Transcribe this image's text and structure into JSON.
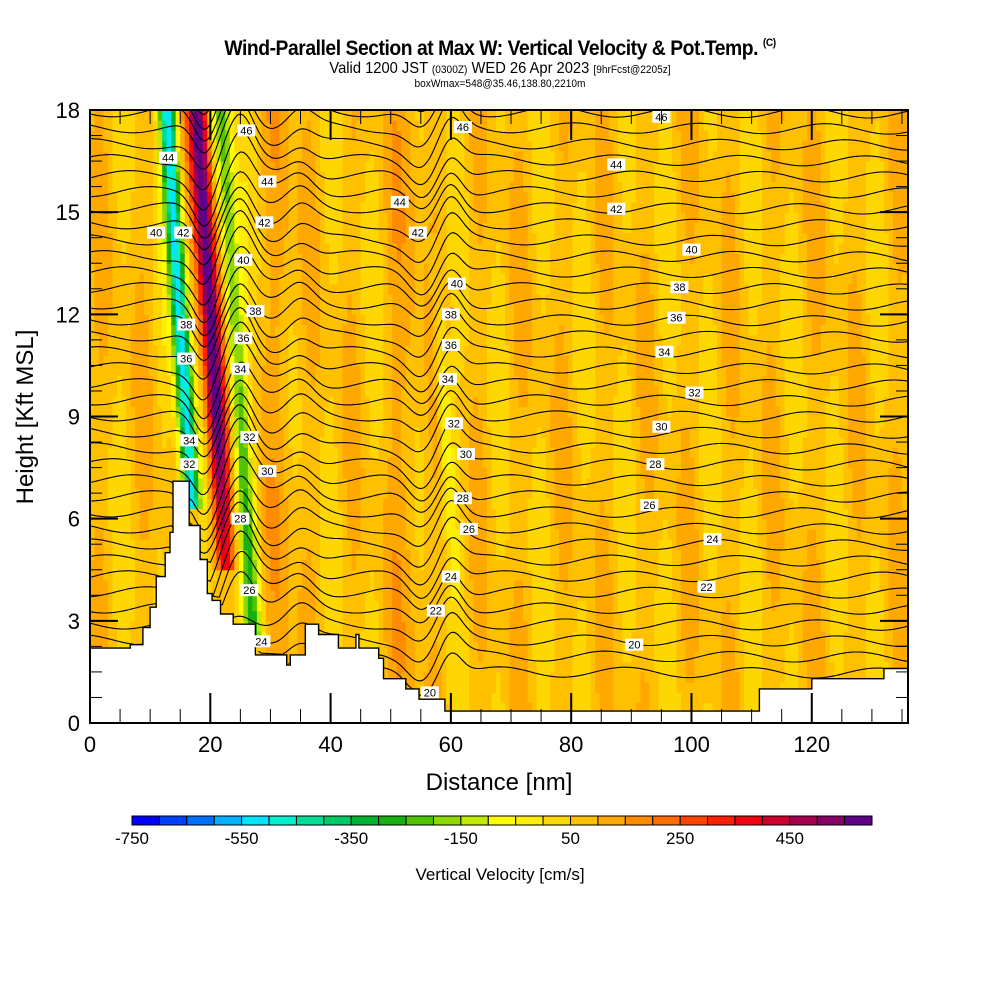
{
  "title": {
    "main": "Wind-Parallel Section at Max W: Vertical Velocity & Pot.Temp.",
    "copyright": "(C)",
    "valid_prefix": "Valid 1200 JST",
    "utc": "(0300Z)",
    "valid_date": "WED 26 Apr 2023",
    "forecast": "[9hrFcst@2205z]",
    "box_info": "boxWmax=548@35.46,138.80,2210m"
  },
  "chart_data": {
    "type": "heatmap",
    "title": "Wind-Parallel Section at Max W: Vertical Velocity & Pot.Temp.",
    "xlabel": "Distance [nm]",
    "ylabel": "Height [Kft MSL]",
    "xlim": [
      0,
      136
    ],
    "ylim": [
      0,
      18
    ],
    "xticks": [
      "0",
      "20",
      "40",
      "60",
      "80",
      "100",
      "120"
    ],
    "xtick_values": [
      0,
      20,
      40,
      60,
      80,
      100,
      120
    ],
    "yticks": [
      "0",
      "3",
      "6",
      "9",
      "12",
      "15",
      "18"
    ],
    "ytick_values": [
      0,
      3,
      6,
      9,
      12,
      15,
      18
    ],
    "grid": false,
    "colorbar": {
      "label": "Vertical Velocity [cm/s]",
      "min": -750,
      "step": 50,
      "tick_labels": [
        "-750",
        "-550",
        "-350",
        "-150",
        "50",
        "250",
        "450"
      ],
      "tick_values": [
        -750,
        -550,
        -350,
        -150,
        50,
        250,
        450
      ],
      "colors": [
        "#0000ff",
        "#0040ff",
        "#0070ff",
        "#00b0ff",
        "#00e5ff",
        "#00f0d0",
        "#00dc98",
        "#00c864",
        "#00b432",
        "#18b010",
        "#50c400",
        "#8cd800",
        "#c0e800",
        "#ffff00",
        "#ffee00",
        "#ffd700",
        "#ffc000",
        "#ffa800",
        "#ff8c00",
        "#ff6c00",
        "#ff4400",
        "#ff2000",
        "#f00010",
        "#cc0030",
        "#a80050",
        "#880066",
        "#600088"
      ]
    },
    "velocity_features": [
      {
        "name": "downdraft",
        "x_center_nm": 16,
        "min_cm_s": -600,
        "y_range_kft": [
          6.8,
          18
        ]
      },
      {
        "name": "updraft",
        "x_center_nm": 21,
        "max_cm_s": 548,
        "y_range_kft": [
          5,
          18
        ]
      },
      {
        "name": "secondary-downdraft",
        "x_center_nm": 25,
        "min_cm_s": -300,
        "y_range_kft": [
          3,
          18
        ]
      },
      {
        "name": "weak-downdraft",
        "x_center_nm": 59,
        "min_cm_s": -150,
        "y_range_kft": [
          4,
          14
        ]
      }
    ],
    "terrain_kft": {
      "x_nm": [
        0,
        6.7,
        8.8,
        10,
        11,
        12.5,
        13.3,
        13.8,
        16.3,
        16.5,
        18.3,
        19.5,
        20.3,
        21.7,
        23.8,
        26.2,
        27.5,
        32.7,
        33.3,
        34.5,
        35.8,
        38.0,
        41.3,
        44.2,
        44.7,
        48,
        48.8,
        52.5,
        54.7,
        59,
        111.3,
        120,
        132,
        136
      ],
      "top_kft": [
        2.2,
        2.3,
        2.8,
        3.4,
        4.3,
        5.0,
        5.6,
        7.1,
        7.1,
        5.8,
        4.8,
        3.8,
        3.6,
        3.2,
        2.9,
        2.9,
        2.0,
        1.7,
        2.0,
        2.0,
        2.9,
        2.6,
        2.2,
        2.6,
        2.2,
        1.9,
        1.3,
        1.0,
        0.7,
        0.35,
        1.0,
        1.3,
        1.6,
        1.6
      ]
    },
    "theta_contours_C": [
      20,
      22,
      24,
      26,
      28,
      30,
      32,
      34,
      36,
      38,
      40,
      42,
      44,
      46
    ],
    "contour_labels": [
      {
        "text": "44",
        "x_nm": 13,
        "y_kft": 16.6
      },
      {
        "text": "40",
        "x_nm": 11,
        "y_kft": 14.4
      },
      {
        "text": "42",
        "x_nm": 15.5,
        "y_kft": 14.4
      },
      {
        "text": "38",
        "x_nm": 16,
        "y_kft": 11.7
      },
      {
        "text": "36",
        "x_nm": 16,
        "y_kft": 10.7
      },
      {
        "text": "34",
        "x_nm": 16.5,
        "y_kft": 8.3
      },
      {
        "text": "32",
        "x_nm": 16.5,
        "y_kft": 7.6
      },
      {
        "text": "46",
        "x_nm": 26,
        "y_kft": 17.4
      },
      {
        "text": "44",
        "x_nm": 29.5,
        "y_kft": 15.9
      },
      {
        "text": "42",
        "x_nm": 29,
        "y_kft": 14.7
      },
      {
        "text": "40",
        "x_nm": 25.5,
        "y_kft": 13.6
      },
      {
        "text": "38",
        "x_nm": 27.5,
        "y_kft": 12.1
      },
      {
        "text": "36",
        "x_nm": 25.5,
        "y_kft": 11.3
      },
      {
        "text": "34",
        "x_nm": 25,
        "y_kft": 10.4
      },
      {
        "text": "32",
        "x_nm": 26.5,
        "y_kft": 8.4
      },
      {
        "text": "30",
        "x_nm": 29.5,
        "y_kft": 7.4
      },
      {
        "text": "28",
        "x_nm": 25,
        "y_kft": 6.0
      },
      {
        "text": "26",
        "x_nm": 26.5,
        "y_kft": 3.9
      },
      {
        "text": "24",
        "x_nm": 28.5,
        "y_kft": 2.4
      },
      {
        "text": "46",
        "x_nm": 62,
        "y_kft": 17.5
      },
      {
        "text": "44",
        "x_nm": 51.5,
        "y_kft": 15.3
      },
      {
        "text": "42",
        "x_nm": 54.5,
        "y_kft": 14.4
      },
      {
        "text": "40",
        "x_nm": 61,
        "y_kft": 12.9
      },
      {
        "text": "38",
        "x_nm": 60,
        "y_kft": 12.0
      },
      {
        "text": "36",
        "x_nm": 60,
        "y_kft": 11.1
      },
      {
        "text": "34",
        "x_nm": 59.5,
        "y_kft": 10.1
      },
      {
        "text": "32",
        "x_nm": 60.5,
        "y_kft": 8.8
      },
      {
        "text": "30",
        "x_nm": 62.5,
        "y_kft": 7.9
      },
      {
        "text": "28",
        "x_nm": 62,
        "y_kft": 6.6
      },
      {
        "text": "26",
        "x_nm": 63,
        "y_kft": 5.7
      },
      {
        "text": "24",
        "x_nm": 60,
        "y_kft": 4.3
      },
      {
        "text": "22",
        "x_nm": 57.5,
        "y_kft": 3.3
      },
      {
        "text": "20",
        "x_nm": 56.5,
        "y_kft": 0.9
      },
      {
        "text": "46",
        "x_nm": 95,
        "y_kft": 17.8
      },
      {
        "text": "44",
        "x_nm": 87.5,
        "y_kft": 16.4
      },
      {
        "text": "42",
        "x_nm": 87.5,
        "y_kft": 15.1
      },
      {
        "text": "40",
        "x_nm": 100,
        "y_kft": 13.9
      },
      {
        "text": "38",
        "x_nm": 98,
        "y_kft": 12.8
      },
      {
        "text": "36",
        "x_nm": 97.5,
        "y_kft": 11.9
      },
      {
        "text": "34",
        "x_nm": 95.5,
        "y_kft": 10.9
      },
      {
        "text": "32",
        "x_nm": 100.5,
        "y_kft": 9.7
      },
      {
        "text": "30",
        "x_nm": 95,
        "y_kft": 8.7
      },
      {
        "text": "28",
        "x_nm": 94,
        "y_kft": 7.6
      },
      {
        "text": "26",
        "x_nm": 93,
        "y_kft": 6.4
      },
      {
        "text": "24",
        "x_nm": 103.5,
        "y_kft": 5.4
      },
      {
        "text": "22",
        "x_nm": 102.5,
        "y_kft": 4.0
      },
      {
        "text": "20",
        "x_nm": 90.5,
        "y_kft": 2.3
      }
    ]
  }
}
